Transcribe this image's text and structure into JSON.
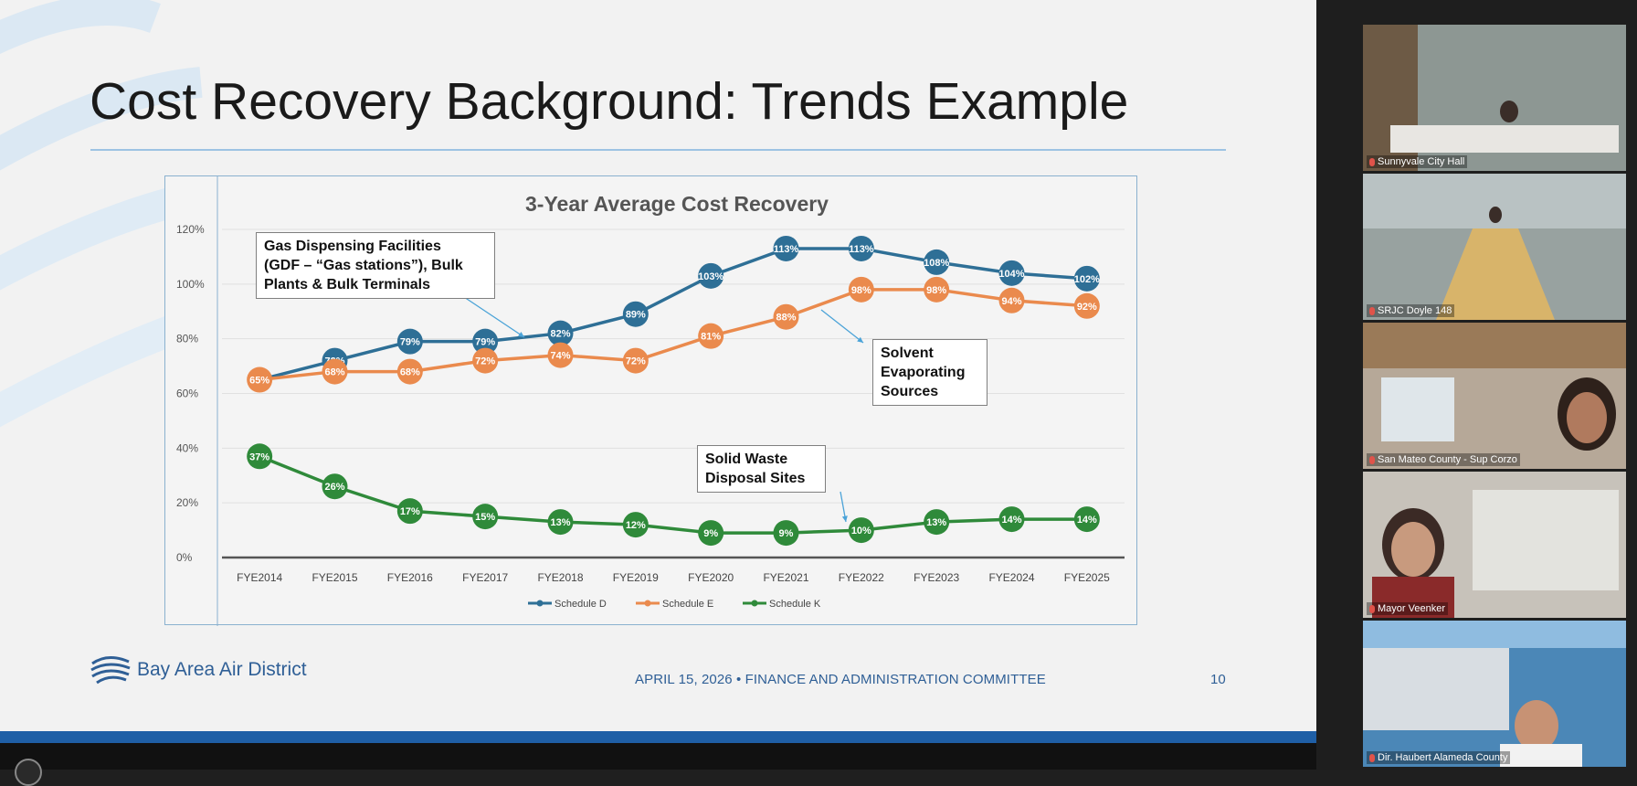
{
  "slide": {
    "title": "Cost Recovery Background: Trends Example",
    "footer": "APRIL 15, 2026 • FINANCE AND ADMINISTRATION COMMITTEE",
    "page_number": "10",
    "logo_text": "Bay Area Air District"
  },
  "callouts": {
    "gdf": [
      "Gas Dispensing Facilities",
      "(GDF – “Gas stations”), Bulk",
      "Plants & Bulk Terminals"
    ],
    "solvent": [
      "Solvent",
      "Evaporating",
      "Sources"
    ],
    "waste": [
      "Solid Waste",
      "Disposal Sites"
    ]
  },
  "chart_data": {
    "type": "line",
    "title": "3-Year Average Cost Recovery",
    "categories": [
      "FYE2014",
      "FYE2015",
      "FYE2016",
      "FYE2017",
      "FYE2018",
      "FYE2019",
      "FYE2020",
      "FYE2021",
      "FYE2022",
      "FYE2023",
      "FYE2024",
      "FYE2025"
    ],
    "y_ticks": [
      "0%",
      "20%",
      "40%",
      "60%",
      "80%",
      "100%",
      "120%"
    ],
    "ylim": [
      0,
      120
    ],
    "grid": true,
    "legend_position": "bottom",
    "series": [
      {
        "name": "Schedule D",
        "color": "#2e6f96",
        "values": [
          65,
          72,
          79,
          79,
          82,
          89,
          103,
          113,
          113,
          108,
          104,
          102
        ],
        "labels": [
          "",
          "72%",
          "79%",
          "79%",
          "82%",
          "89%",
          "103%",
          "113%",
          "113%",
          "108%",
          "104%",
          "102%"
        ]
      },
      {
        "name": "Schedule E",
        "color": "#ea8a4d",
        "values": [
          65,
          68,
          68,
          72,
          74,
          72,
          81,
          88,
          98,
          98,
          94,
          92
        ],
        "labels": [
          "65%",
          "68%",
          "68%",
          "72%",
          "74%",
          "72%",
          "81%",
          "88%",
          "98%",
          "98%",
          "94%",
          "92%"
        ]
      },
      {
        "name": "Schedule K",
        "color": "#2f8a3a",
        "values": [
          37,
          26,
          17,
          15,
          13,
          12,
          9,
          9,
          10,
          13,
          14,
          14
        ],
        "labels": [
          "37%",
          "26%",
          "17%",
          "15%",
          "13%",
          "12%",
          "9%",
          "9%",
          "10%",
          "13%",
          "14%",
          "14%"
        ]
      }
    ]
  },
  "participants": [
    {
      "name": "Sunnyvale City Hall",
      "bg": "#8d9793"
    },
    {
      "name": "SRJC Doyle 148",
      "bg": "#98a2a0"
    },
    {
      "name": "San Mateo County - Sup Corzo",
      "bg": "#b6a898"
    },
    {
      "name": "Mayor Veenker",
      "bg": "#c7c2ba"
    },
    {
      "name": "Dir. Haubert Alameda County",
      "bg": "#4b87b7"
    }
  ]
}
